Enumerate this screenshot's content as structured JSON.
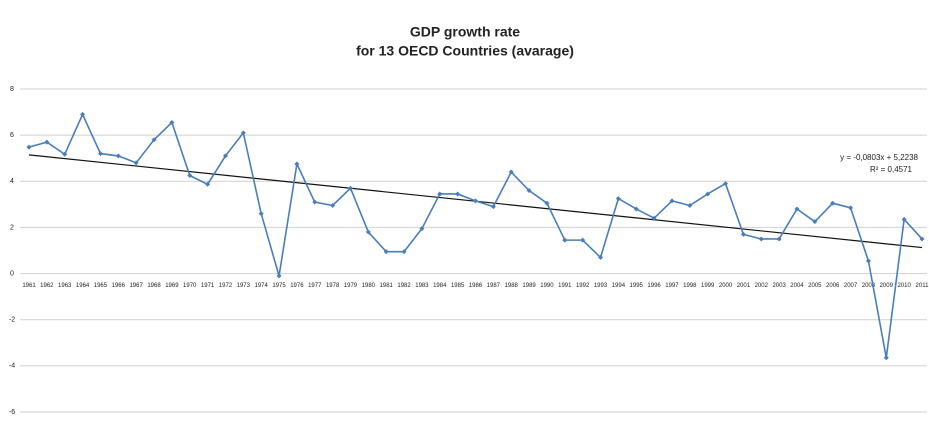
{
  "chart_data": {
    "type": "line",
    "title": "GDP growth rate",
    "subtitle": "for 13 OECD Countries (avarage)",
    "categories": [
      "1961",
      "1962",
      "1963",
      "1964",
      "1965",
      "1966",
      "1967",
      "1968",
      "1969",
      "1970",
      "1971",
      "1972",
      "1973",
      "1974",
      "1975",
      "1976",
      "1977",
      "1978",
      "1979",
      "1980",
      "1981",
      "1982",
      "1983",
      "1984",
      "1985",
      "1986",
      "1987",
      "1988",
      "1989",
      "1990",
      "1991",
      "1992",
      "1993",
      "1994",
      "1995",
      "1996",
      "1997",
      "1998",
      "1999",
      "2000",
      "2001",
      "2002",
      "2003",
      "2004",
      "2005",
      "2006",
      "2007",
      "2008",
      "2009",
      "2010",
      "2011"
    ],
    "values": [
      5.48,
      5.7,
      5.17,
      6.9,
      5.2,
      5.1,
      4.8,
      5.8,
      6.55,
      4.25,
      3.87,
      5.1,
      6.1,
      2.6,
      -0.1,
      4.75,
      3.1,
      2.95,
      3.7,
      1.8,
      0.95,
      0.95,
      1.95,
      3.45,
      3.45,
      3.15,
      2.9,
      4.4,
      3.6,
      3.05,
      1.45,
      1.45,
      0.7,
      3.25,
      2.8,
      2.4,
      3.15,
      2.95,
      3.45,
      3.9,
      1.7,
      1.5,
      1.5,
      2.8,
      2.25,
      3.05,
      2.85,
      0.55,
      -3.65,
      2.35,
      1.5
    ],
    "color": "#4a7ebb",
    "ylim": [
      -6,
      8
    ],
    "yticks": [
      -6,
      -4,
      -2,
      0,
      2,
      4,
      6,
      8
    ],
    "grid": true,
    "trendline": {
      "slope": -0.0803,
      "intercept": 5.2238,
      "color": "#111111",
      "equation": "y = -0,0803x + 5,2238",
      "r2": "R² = 0,4571"
    }
  }
}
